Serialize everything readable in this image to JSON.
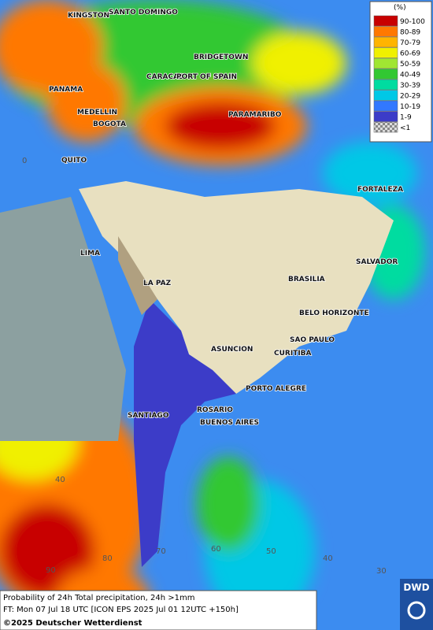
{
  "map": {
    "cities": [
      "KINGSTON",
      "SANTO DOMINGO",
      "BRIDGETOWN",
      "CARACAS",
      "PORT OF SPAIN",
      "PANAMA",
      "MEDELLIN",
      "BOGOTA",
      "PARAMARIBO",
      "QUITO",
      "FORTALEZA",
      "LIMA",
      "SALVADOR",
      "LA PAZ",
      "BRASILIA",
      "BELO HORIZONTE",
      "SAO PAULO",
      "ASUNCION",
      "CURITIBA",
      "PORTO ALEGRE",
      "SANTIAGO",
      "ROSARIO",
      "BUENOS AIRES"
    ],
    "grid_labels": [
      "0",
      "40",
      "90",
      "80",
      "70",
      "60",
      "50",
      "40",
      "30"
    ],
    "legend": {
      "unit": "(%)",
      "items": [
        {
          "label": "90-100",
          "color": "#c80000"
        },
        {
          "label": "80-89",
          "color": "#ff7800"
        },
        {
          "label": "70-79",
          "color": "#ffb400"
        },
        {
          "label": "60-69",
          "color": "#f0f000"
        },
        {
          "label": "50-59",
          "color": "#a0e632"
        },
        {
          "label": "40-49",
          "color": "#32c832"
        },
        {
          "label": "30-39",
          "color": "#00dca0"
        },
        {
          "label": "20-29",
          "color": "#00c8e6"
        },
        {
          "label": "10-19",
          "color": "#3278ff"
        },
        {
          "label": "1-9",
          "color": "#3c3cc8"
        },
        {
          "label": "<1",
          "color": "#a0a0a0"
        }
      ]
    },
    "footer": [
      "Probability of 24h Total precipitation, 24h >1mm",
      "FT: Mon 07 Jul 18 UTC [ICON EPS 2025 Jul 01 12UTC +150h]",
      "©2025 Deutscher Wetterdienst"
    ],
    "logo": "DWD"
  }
}
